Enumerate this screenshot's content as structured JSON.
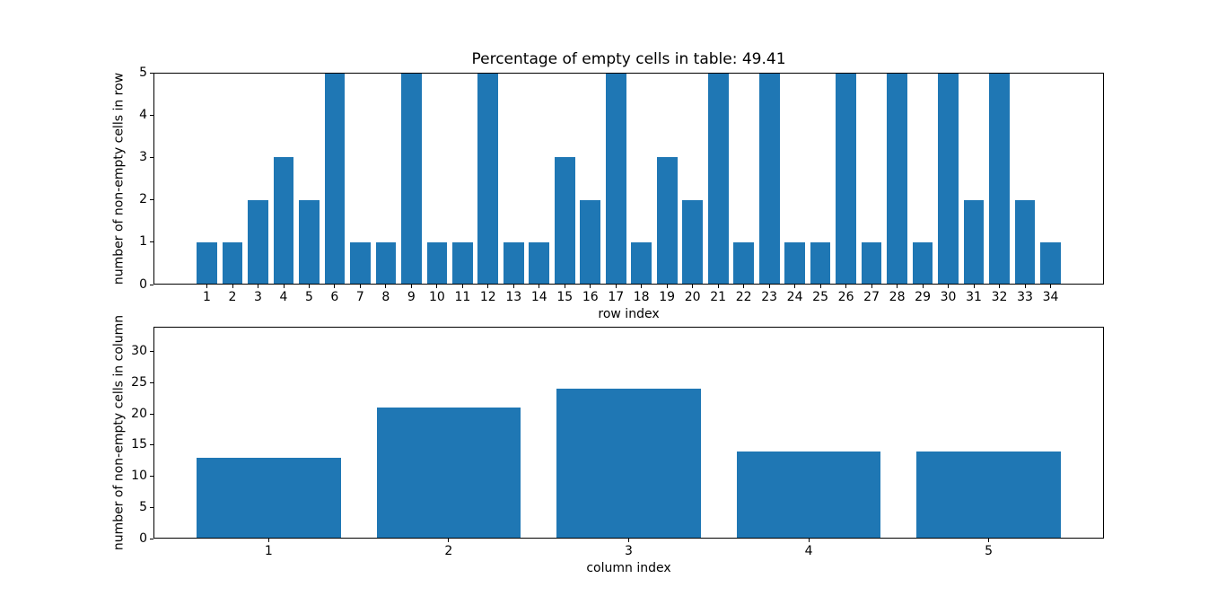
{
  "figure": {
    "background": "#ffffff"
  },
  "colors": {
    "bar": "#1f77b4",
    "spine": "#000000",
    "text": "#000000"
  },
  "chart_data": [
    {
      "id": "rows-chart",
      "type": "bar",
      "title": "Percentage of empty cells in table: 49.41",
      "xlabel": "row index",
      "ylabel": "number of non-empty cells in row",
      "categories": [
        "1",
        "2",
        "3",
        "4",
        "5",
        "6",
        "7",
        "8",
        "9",
        "10",
        "11",
        "12",
        "13",
        "14",
        "15",
        "16",
        "17",
        "18",
        "19",
        "20",
        "21",
        "22",
        "23",
        "24",
        "25",
        "26",
        "27",
        "28",
        "29",
        "30",
        "31",
        "32",
        "33",
        "34"
      ],
      "values": [
        1,
        1,
        2,
        3,
        2,
        5,
        1,
        1,
        5,
        1,
        1,
        5,
        1,
        1,
        3,
        2,
        5,
        1,
        3,
        2,
        5,
        1,
        5,
        1,
        1,
        5,
        1,
        5,
        1,
        5,
        2,
        5,
        2,
        1
      ],
      "ylim": [
        0,
        5
      ],
      "yticks": [
        0,
        1,
        2,
        3,
        4,
        5
      ],
      "xlim": [
        -1.09,
        36.09
      ],
      "bar_width": 0.8,
      "grid": false,
      "legend": null
    },
    {
      "id": "columns-chart",
      "type": "bar",
      "title": "",
      "xlabel": "column index",
      "ylabel": "number of non-empty cells in column",
      "categories": [
        "1",
        "2",
        "3",
        "4",
        "5"
      ],
      "values": [
        13,
        21,
        24,
        14,
        14
      ],
      "ylim": [
        0,
        34
      ],
      "yticks": [
        0,
        5,
        10,
        15,
        20,
        25,
        30
      ],
      "xlim": [
        0.36,
        5.64
      ],
      "bar_width": 0.8,
      "grid": false,
      "legend": null
    }
  ]
}
